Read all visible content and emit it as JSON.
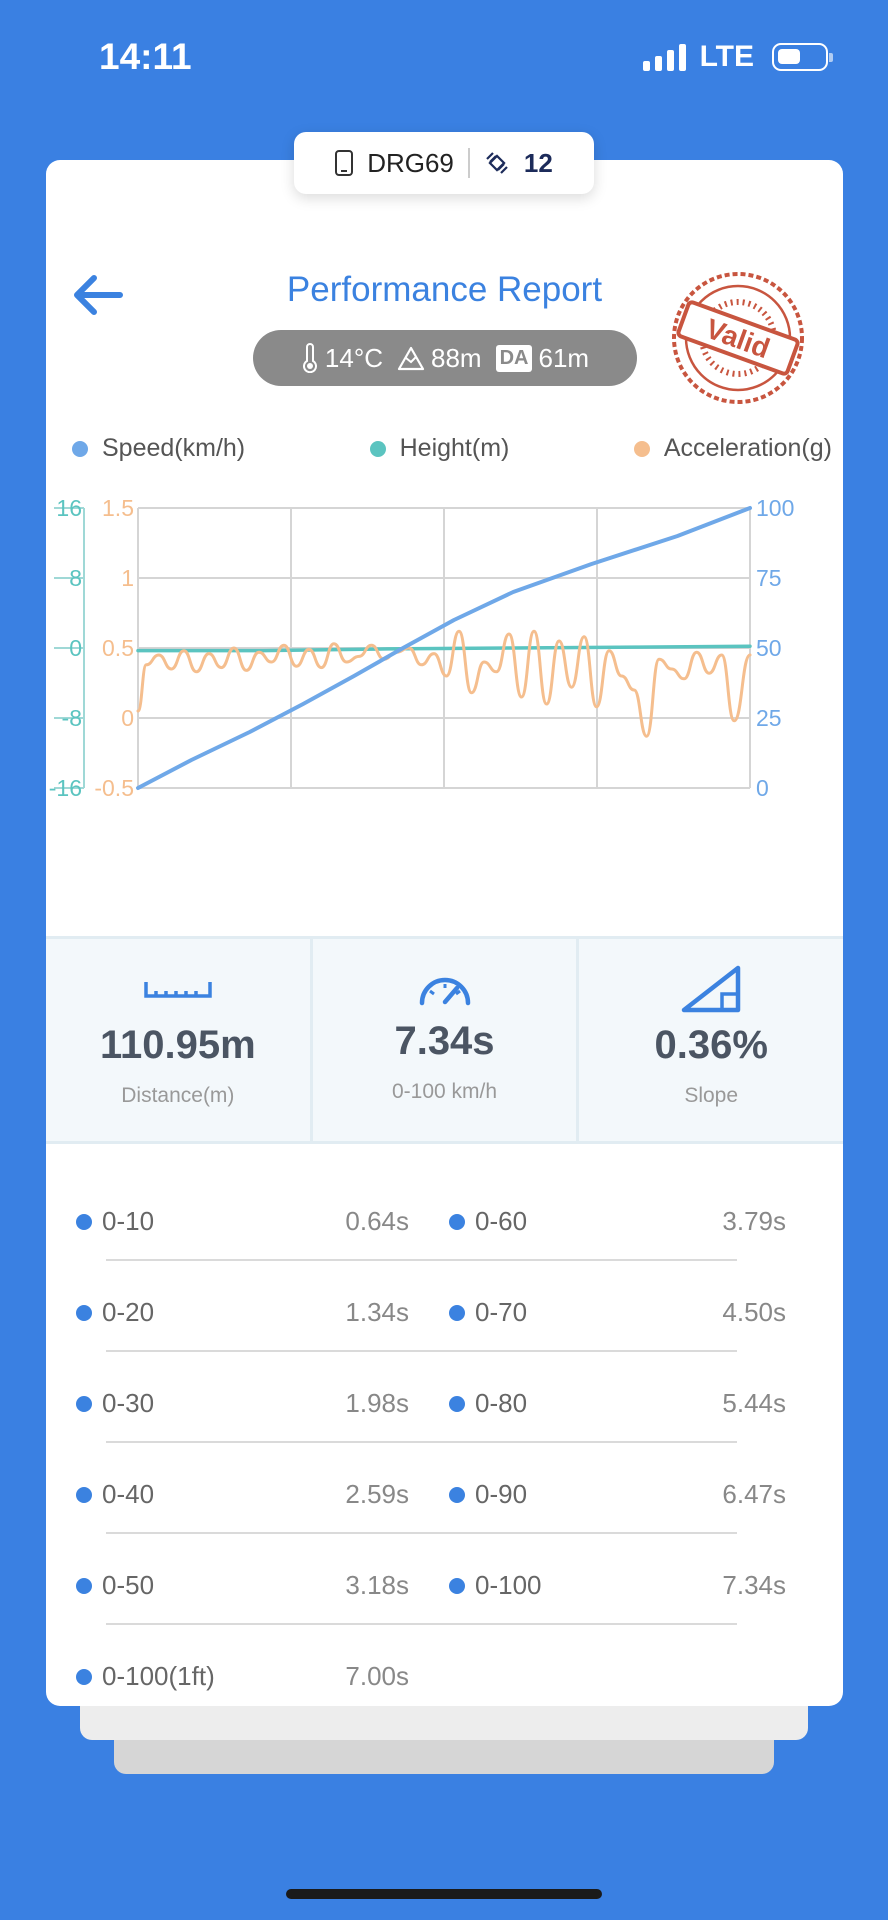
{
  "status_bar": {
    "time": "14:11",
    "network": "LTE"
  },
  "device": {
    "name": "DRG69",
    "satellites": "12"
  },
  "header": {
    "title": "Performance Report",
    "stamp_text": "Valid"
  },
  "environment": {
    "temperature": "14°C",
    "altitude": "88m",
    "da_label": "DA",
    "density_altitude": "61m"
  },
  "legend": [
    {
      "label": "Speed(km/h)",
      "color": "#6FA8E8"
    },
    {
      "label": "Height(m)",
      "color": "#5BC4C0"
    },
    {
      "label": "Acceleration(g)",
      "color": "#F5BE8E"
    }
  ],
  "chart_data": {
    "type": "line",
    "axes": {
      "height_left": {
        "ticks": [
          "16",
          "8",
          "0",
          "-8",
          "-16"
        ],
        "range": [
          -16,
          16
        ],
        "color": "#5BC4C0"
      },
      "accel_left": {
        "ticks": [
          "1.5",
          "1",
          "0.5",
          "0",
          "-0.5"
        ],
        "range": [
          -0.5,
          1.5
        ],
        "color": "#F5BE8E"
      },
      "speed_right": {
        "ticks": [
          "100",
          "75",
          "50",
          "25",
          "0"
        ],
        "range": [
          0,
          100
        ],
        "color": "#6FA8E8"
      }
    },
    "x_range": [
      0,
      7.34
    ],
    "grid": true,
    "series": [
      {
        "name": "Speed(km/h)",
        "color": "#6FA8E8",
        "x": [
          0,
          0.64,
          1.34,
          1.98,
          2.59,
          3.18,
          3.79,
          4.5,
          5.44,
          6.47,
          7.34
        ],
        "values": [
          0,
          10,
          20,
          30,
          40,
          50,
          60,
          70,
          80,
          90,
          100
        ]
      },
      {
        "name": "Height(m)",
        "color": "#5BC4C0",
        "x": [
          0,
          1.5,
          3,
          4.5,
          6,
          7.34
        ],
        "values": [
          -0.3,
          -0.3,
          -0.1,
          0,
          0.1,
          0.2
        ]
      },
      {
        "name": "Acceleration(g)",
        "color": "#F5BE8E",
        "x": [
          0,
          0.1,
          0.25,
          0.4,
          0.55,
          0.7,
          0.85,
          1.0,
          1.15,
          1.3,
          1.45,
          1.6,
          1.75,
          1.9,
          2.05,
          2.2,
          2.35,
          2.5,
          2.65,
          2.8,
          2.95,
          3.1,
          3.25,
          3.4,
          3.55,
          3.7,
          3.85,
          4.0,
          4.15,
          4.3,
          4.45,
          4.6,
          4.75,
          4.9,
          5.05,
          5.2,
          5.35,
          5.5,
          5.65,
          5.8,
          5.95,
          6.1,
          6.25,
          6.4,
          6.55,
          6.7,
          6.85,
          7.0,
          7.15,
          7.34
        ],
        "values": [
          0.05,
          0.38,
          0.45,
          0.35,
          0.48,
          0.33,
          0.46,
          0.36,
          0.5,
          0.34,
          0.47,
          0.4,
          0.52,
          0.37,
          0.49,
          0.36,
          0.53,
          0.4,
          0.44,
          0.52,
          0.42,
          0.47,
          0.5,
          0.38,
          0.46,
          0.3,
          0.62,
          0.18,
          0.4,
          0.33,
          0.6,
          0.15,
          0.62,
          0.1,
          0.55,
          0.22,
          0.58,
          0.08,
          0.48,
          0.3,
          0.2,
          -0.13,
          0.42,
          0.35,
          0.28,
          0.47,
          0.32,
          0.45,
          -0.02,
          0.45
        ]
      }
    ]
  },
  "stats": [
    {
      "value": "110.95m",
      "label": "Distance(m)",
      "icon": "ruler-icon"
    },
    {
      "value": "7.34s",
      "label": "0-100 km/h",
      "icon": "speedometer-icon"
    },
    {
      "value": "0.36%",
      "label": "Slope",
      "icon": "slope-icon"
    }
  ],
  "splits": [
    {
      "left": {
        "label": "0-10",
        "value": "0.64s"
      },
      "right": {
        "label": "0-60",
        "value": "3.79s"
      }
    },
    {
      "left": {
        "label": "0-20",
        "value": "1.34s"
      },
      "right": {
        "label": "0-70",
        "value": "4.50s"
      }
    },
    {
      "left": {
        "label": "0-30",
        "value": "1.98s"
      },
      "right": {
        "label": "0-80",
        "value": "5.44s"
      }
    },
    {
      "left": {
        "label": "0-40",
        "value": "2.59s"
      },
      "right": {
        "label": "0-90",
        "value": "6.47s"
      }
    },
    {
      "left": {
        "label": "0-50",
        "value": "3.18s"
      },
      "right": {
        "label": "0-100",
        "value": "7.34s"
      }
    },
    {
      "left": {
        "label": "0-100(1ft)",
        "value": "7.00s"
      }
    }
  ]
}
